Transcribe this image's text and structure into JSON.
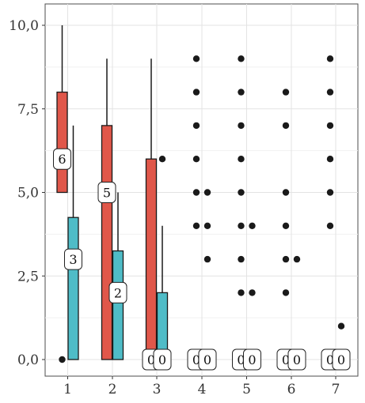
{
  "chart_data": {
    "type": "box",
    "title": "",
    "xlabel": "",
    "ylabel": "",
    "categories": [
      "1",
      "2",
      "3",
      "4",
      "5",
      "6",
      "7"
    ],
    "ylim": [
      -0.5,
      10.3
    ],
    "yticks": [
      0.0,
      2.5,
      5.0,
      7.5,
      10.0
    ],
    "ytick_labels": [
      "0,0",
      "2,5",
      "5,0",
      "7,5",
      "10,0"
    ],
    "grid": true,
    "legend": "none",
    "series": [
      {
        "color": "#e0574a",
        "boxes": [
          {
            "x": "1",
            "min": 5,
            "q1": 5,
            "median": 6,
            "q3": 8,
            "max": 10,
            "outliers": [
              0
            ]
          },
          {
            "x": "2",
            "min": 0,
            "q1": 0,
            "median": 5,
            "q3": 7,
            "max": 9,
            "outliers": []
          },
          {
            "x": "3",
            "min": 0,
            "q1": 0,
            "median": 0,
            "q3": 6,
            "max": 9,
            "outliers": []
          },
          {
            "x": "4",
            "min": 0,
            "q1": 0,
            "median": 0,
            "q3": 0,
            "max": 0,
            "outliers": [
              4,
              5,
              6,
              7,
              8,
              9
            ]
          },
          {
            "x": "5",
            "min": 0,
            "q1": 0,
            "median": 0,
            "q3": 0,
            "max": 0,
            "outliers": [
              2,
              3,
              4,
              5,
              6,
              7,
              8,
              9
            ]
          },
          {
            "x": "6",
            "min": 0,
            "q1": 0,
            "median": 0,
            "q3": 0,
            "max": 0,
            "outliers": [
              2,
              3,
              4,
              5,
              7,
              8
            ]
          },
          {
            "x": "7",
            "min": 0,
            "q1": 0,
            "median": 0,
            "q3": 0,
            "max": 0,
            "outliers": [
              4,
              5,
              6,
              7,
              8,
              9
            ]
          }
        ]
      },
      {
        "color": "#4fbcc7",
        "boxes": [
          {
            "x": "1",
            "min": 0,
            "q1": 0,
            "median": 3,
            "q3": 4.25,
            "max": 7,
            "outliers": []
          },
          {
            "x": "2",
            "min": 0,
            "q1": 0,
            "median": 2,
            "q3": 3.25,
            "max": 5,
            "outliers": []
          },
          {
            "x": "3",
            "min": 0,
            "q1": 0,
            "median": 0,
            "q3": 2,
            "max": 4,
            "outliers": [
              6
            ]
          },
          {
            "x": "4",
            "min": 0,
            "q1": 0,
            "median": 0,
            "q3": 0,
            "max": 0,
            "outliers": [
              3,
              4,
              5
            ]
          },
          {
            "x": "5",
            "min": 0,
            "q1": 0,
            "median": 0,
            "q3": 0,
            "max": 0,
            "outliers": [
              2,
              4
            ]
          },
          {
            "x": "6",
            "min": 0,
            "q1": 0,
            "median": 0,
            "q3": 0,
            "max": 0,
            "outliers": [
              3
            ]
          },
          {
            "x": "7",
            "min": 0,
            "q1": 0,
            "median": 0,
            "q3": 0,
            "max": 0,
            "outliers": [
              1
            ]
          }
        ]
      }
    ],
    "median_labels": true
  }
}
